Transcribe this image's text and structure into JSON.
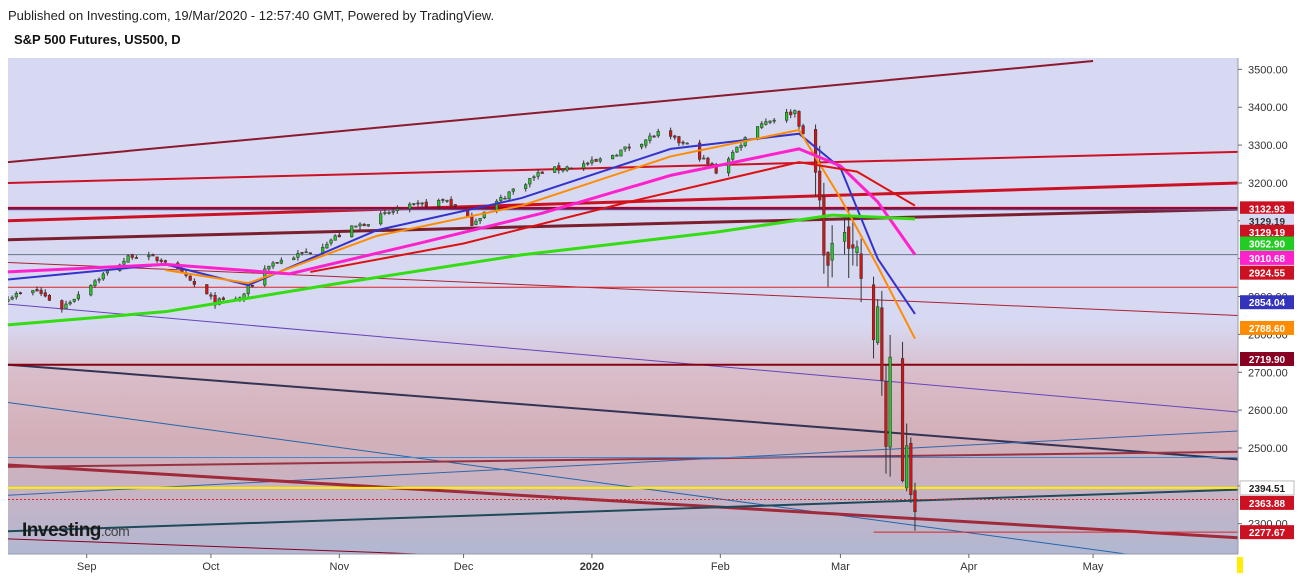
{
  "header": {
    "published": "Published on Investing.com, 19/Mar/2020 - 12:57:40 GMT, Powered by TradingView.",
    "symbol": "S&P 500 Futures, US500, D"
  },
  "logo": {
    "main": "Investing",
    "suffix": ".com"
  },
  "colors": {
    "background": "#d7d8f2",
    "up": "#22cc22",
    "down": "#dd1111",
    "ma_blue": "#3333cc",
    "ma_orange": "#ff8c00",
    "ma_magenta": "#ff22cc",
    "ma_red": "#dd1111",
    "ma_green": "#33dd11"
  },
  "chart_data": {
    "type": "candlestick",
    "title": "S&P 500 Futures, US500, D",
    "y_ticks": [
      2300,
      2400,
      2500,
      2600,
      2700,
      2800,
      2900,
      3000,
      3100,
      3200,
      3300,
      3400,
      3500
    ],
    "y_tick_labels": [
      "2300.00",
      "2400.00",
      "2500.00",
      "2600.00",
      "2700.00",
      "2800.00",
      "2900.00",
      "3000.00",
      "3100.00",
      "3200.00",
      "3300.00",
      "3400.00",
      "3500.00"
    ],
    "ylim": [
      2220,
      3530
    ],
    "x_labels": [
      {
        "label": "Sep",
        "date": "2019-09-01"
      },
      {
        "label": "Oct",
        "date": "2019-10-01"
      },
      {
        "label": "Nov",
        "date": "2019-11-01"
      },
      {
        "label": "Dec",
        "date": "2019-12-01"
      },
      {
        "label": "2020",
        "date": "2020-01-01",
        "bold": true
      },
      {
        "label": "Feb",
        "date": "2020-02-01"
      },
      {
        "label": "Mar",
        "date": "2020-03-01"
      },
      {
        "label": "Apr",
        "date": "2020-04-01"
      },
      {
        "label": "May",
        "date": "2020-05-01"
      }
    ],
    "xlim": [
      "2019-08-13",
      "2020-06-05"
    ],
    "anchors": [
      [
        "2019-08-13",
        2900
      ],
      [
        "2019-08-20",
        2915
      ],
      [
        "2019-08-26",
        2870
      ],
      [
        "2019-09-02",
        2935
      ],
      [
        "2019-09-12",
        3010
      ],
      [
        "2019-09-20",
        2995
      ],
      [
        "2019-10-02",
        2885
      ],
      [
        "2019-10-08",
        2895
      ],
      [
        "2019-10-15",
        2985
      ],
      [
        "2019-10-25",
        3020
      ],
      [
        "2019-11-04",
        3080
      ],
      [
        "2019-11-15",
        3130
      ],
      [
        "2019-11-27",
        3155
      ],
      [
        "2019-12-03",
        3095
      ],
      [
        "2019-12-12",
        3175
      ],
      [
        "2019-12-20",
        3230
      ],
      [
        "2020-01-02",
        3255
      ],
      [
        "2020-01-17",
        3330
      ],
      [
        "2020-01-24",
        3300
      ],
      [
        "2020-01-31",
        3230
      ],
      [
        "2020-02-10",
        3355
      ],
      [
        "2020-02-19",
        3390
      ],
      [
        "2020-02-24",
        3225
      ],
      [
        "2020-02-27",
        2965
      ],
      [
        "2020-03-02",
        3095
      ],
      [
        "2020-03-05",
        3020
      ],
      [
        "2020-03-09",
        2755
      ],
      [
        "2020-03-10",
        2880
      ],
      [
        "2020-03-12",
        2500
      ],
      [
        "2020-03-13",
        2700
      ],
      [
        "2020-03-16",
        2400
      ],
      [
        "2020-03-17",
        2525
      ],
      [
        "2020-03-18",
        2400
      ],
      [
        "2020-03-19",
        2363.88
      ]
    ],
    "moving_averages": [
      {
        "color": "ma_blue",
        "points": [
          [
            "2019-08-13",
            2945
          ],
          [
            "2019-09-20",
            2985
          ],
          [
            "2019-10-10",
            2930
          ],
          [
            "2019-11-10",
            3075
          ],
          [
            "2019-12-15",
            3160
          ],
          [
            "2020-01-20",
            3290
          ],
          [
            "2020-02-20",
            3330
          ],
          [
            "2020-03-01",
            3240
          ],
          [
            "2020-03-10",
            3000
          ],
          [
            "2020-03-19",
            2854.04
          ]
        ]
      },
      {
        "color": "ma_orange",
        "points": [
          [
            "2019-09-20",
            2970
          ],
          [
            "2019-10-10",
            2935
          ],
          [
            "2019-11-10",
            3060
          ],
          [
            "2019-12-15",
            3140
          ],
          [
            "2020-01-20",
            3270
          ],
          [
            "2020-02-20",
            3340
          ],
          [
            "2020-03-01",
            3160
          ],
          [
            "2020-03-10",
            2980
          ],
          [
            "2020-03-19",
            2788.6
          ]
        ]
      },
      {
        "color": "ma_magenta",
        "points": [
          [
            "2019-08-13",
            2965
          ],
          [
            "2019-09-20",
            2985
          ],
          [
            "2019-10-20",
            2960
          ],
          [
            "2019-11-20",
            3040
          ],
          [
            "2019-12-20",
            3120
          ],
          [
            "2020-01-20",
            3220
          ],
          [
            "2020-02-20",
            3290
          ],
          [
            "2020-03-01",
            3245
          ],
          [
            "2020-03-10",
            3150
          ],
          [
            "2020-03-19",
            3010.68
          ]
        ]
      },
      {
        "color": "ma_red",
        "points": [
          [
            "2019-10-25",
            2965
          ],
          [
            "2019-12-01",
            3040
          ],
          [
            "2020-01-10",
            3150
          ],
          [
            "2020-02-20",
            3255
          ],
          [
            "2020-03-05",
            3230
          ],
          [
            "2020-03-19",
            3140
          ]
        ]
      },
      {
        "color": "ma_green",
        "points": [
          [
            "2019-08-13",
            2825
          ],
          [
            "2019-09-20",
            2860
          ],
          [
            "2019-11-01",
            2935
          ],
          [
            "2019-12-15",
            3010
          ],
          [
            "2020-01-31",
            3070
          ],
          [
            "2020-02-28",
            3115
          ],
          [
            "2020-03-19",
            3105
          ]
        ]
      }
    ],
    "trend_lines": [
      {
        "color": "#8b1a2e",
        "width": 2,
        "p1": [
          "2019-08-13",
          3255
        ],
        "p2": [
          "2020-05-01",
          3522
        ]
      },
      {
        "color": "#cc1122",
        "width": 2,
        "p1": [
          "2019-08-13",
          3200
        ],
        "p2": [
          "2020-06-05",
          3282
        ]
      },
      {
        "color": "#cc1122",
        "width": 3,
        "p1": [
          "2019-08-13",
          3100
        ],
        "p2": [
          "2020-06-05",
          3200
        ]
      },
      {
        "color": "#7a1f2e",
        "width": 3,
        "p1": [
          "2019-08-13",
          3050
        ],
        "p2": [
          "2020-06-05",
          3131
        ]
      },
      {
        "color": "#aa2233",
        "width": 1,
        "p1": [
          "2019-08-13",
          2990
        ],
        "p2": [
          "2020-06-05",
          2850
        ]
      },
      {
        "color": "#6644bb",
        "width": 1,
        "p1": [
          "2019-08-13",
          2880
        ],
        "p2": [
          "2020-06-05",
          2595
        ]
      },
      {
        "color": "#333355",
        "width": 2,
        "p1": [
          "2019-08-13",
          2720
        ],
        "p2": [
          "2020-06-05",
          2470
        ]
      },
      {
        "color": "#2266aa",
        "width": 1,
        "p1": [
          "2019-08-13",
          2620
        ],
        "p2": [
          "2020-06-05",
          2180
        ]
      },
      {
        "color": "#993344",
        "width": 2,
        "p1": [
          "2019-08-13",
          2450
        ],
        "p2": [
          "2020-06-05",
          2490
        ]
      },
      {
        "color": "#3366aa",
        "width": 1,
        "p1": [
          "2019-08-13",
          2375
        ],
        "p2": [
          "2020-06-05",
          2545
        ]
      },
      {
        "color": "#a02a3a",
        "width": 3,
        "p1": [
          "2019-08-13",
          2455
        ],
        "p2": [
          "2020-06-05",
          2263
        ]
      },
      {
        "color": "#1e4a5a",
        "width": 2,
        "p1": [
          "2019-08-13",
          2280
        ],
        "p2": [
          "2020-06-05",
          2390
        ]
      },
      {
        "color": "#880022",
        "width": 1,
        "p1": [
          "2019-08-13",
          2260
        ],
        "p2": [
          "2020-06-05",
          2140
        ]
      }
    ],
    "horizontal_lines": [
      {
        "value": 3132.93,
        "color": "#aa0022",
        "width": 3,
        "start": "2019-08-13"
      },
      {
        "value": 3129.19,
        "color": "#4466bb",
        "width": 1,
        "start": "2019-08-13"
      },
      {
        "value": 3010.68,
        "color": "#667788",
        "width": 1,
        "start": "2019-08-13"
      },
      {
        "value": 2924.55,
        "color": "#dd2222",
        "width": 1,
        "start": "2019-08-13"
      },
      {
        "value": 2719.9,
        "color": "#880011",
        "width": 2,
        "start": "2019-08-13"
      },
      {
        "value": 2475,
        "color": "#4488cc",
        "width": 1,
        "start": "2019-08-13"
      },
      {
        "value": 2394.51,
        "color": "#ffee00",
        "width": 2,
        "start": "2019-08-13"
      },
      {
        "value": 2363.88,
        "color": "#dd2222",
        "width": 1,
        "dashed": true,
        "start": "2019-08-13"
      },
      {
        "value": 2277.67,
        "color": "#dd2222",
        "width": 1,
        "start": "2020-03-09"
      }
    ],
    "price_badges": [
      {
        "label": "3132.93",
        "value": 3132.93,
        "bg": "#cc1122",
        "fg": "#ffffff"
      },
      {
        "label": "3129.19",
        "value": 3100,
        "bg": "#d7d8f2",
        "fg": "#333333"
      },
      {
        "label": "3129.19",
        "value": 3071,
        "bg": "#cc1122",
        "fg": "#ffffff"
      },
      {
        "label": "3052.90",
        "value": 3040,
        "bg": "#22cc22",
        "fg": "#ffffff"
      },
      {
        "label": "3010.68",
        "value": 3002,
        "bg": "#ff22cc",
        "fg": "#ffffff"
      },
      {
        "label": "2924.55",
        "value": 2963,
        "bg": "#cc1122",
        "fg": "#ffffff"
      },
      {
        "label": "2854.04",
        "value": 2885,
        "bg": "#3333bb",
        "fg": "#ffffff"
      },
      {
        "label": "2788.60",
        "value": 2817,
        "bg": "#ff8c00",
        "fg": "#ffffff"
      },
      {
        "label": "2719.90",
        "value": 2735,
        "bg": "#880022",
        "fg": "#ffffff"
      },
      {
        "label": "2394.51",
        "value": 2394.51,
        "bg": "#ffffff",
        "fg": "#222222"
      },
      {
        "label": "2363.88",
        "value": 2355,
        "bg": "#cc1122",
        "fg": "#ffffff"
      },
      {
        "label": "2277.67",
        "value": 2277.67,
        "bg": "#cc1122",
        "fg": "#ffffff"
      }
    ]
  }
}
